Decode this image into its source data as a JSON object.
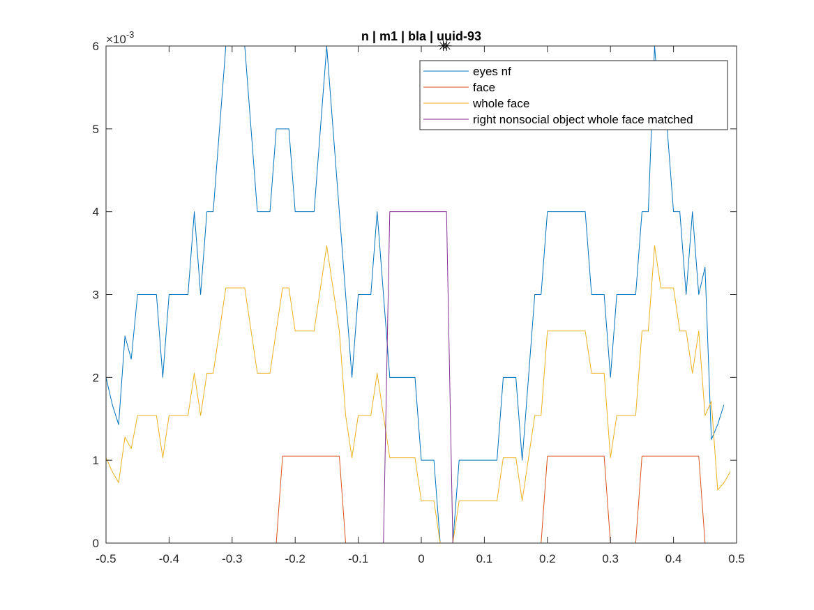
{
  "chart_data": {
    "type": "line",
    "title": "n | m1 | bla | uuid-93",
    "xlabel": "",
    "ylabel": "",
    "xlim": [
      -0.5,
      0.5
    ],
    "ylim": [
      0,
      0.006
    ],
    "y_exponent_label": "×10",
    "y_exponent_power": "-3",
    "x_ticks": [
      {
        "value": -0.5,
        "label": "-0.5"
      },
      {
        "value": -0.4,
        "label": "-0.4"
      },
      {
        "value": -0.3,
        "label": "-0.3"
      },
      {
        "value": -0.2,
        "label": "-0.2"
      },
      {
        "value": -0.1,
        "label": "-0.1"
      },
      {
        "value": 0,
        "label": "0"
      },
      {
        "value": 0.1,
        "label": "0.1"
      },
      {
        "value": 0.2,
        "label": "0.2"
      },
      {
        "value": 0.3,
        "label": "0.3"
      },
      {
        "value": 0.4,
        "label": "0.4"
      },
      {
        "value": 0.5,
        "label": "0.5"
      }
    ],
    "y_ticks": [
      {
        "value": 0,
        "label": "0"
      },
      {
        "value": 0.001,
        "label": "1"
      },
      {
        "value": 0.002,
        "label": "2"
      },
      {
        "value": 0.003,
        "label": "3"
      },
      {
        "value": 0.004,
        "label": "4"
      },
      {
        "value": 0.005,
        "label": "5"
      },
      {
        "value": 0.006,
        "label": "6"
      }
    ],
    "grid": false,
    "legend_position": "top-right",
    "markers": [
      {
        "x": 0.035,
        "y": 0.006,
        "symbol": "✳"
      },
      {
        "x": 0.04,
        "y": 0.006,
        "symbol": "✳"
      }
    ],
    "series": [
      {
        "name": "eyes nf",
        "color": "#0072BD",
        "points": [
          [
            -0.5,
            0.002
          ],
          [
            -0.49,
            0.00167
          ],
          [
            -0.48,
            0.00143
          ],
          [
            -0.47,
            0.0025
          ],
          [
            -0.46,
            0.00222
          ],
          [
            -0.45,
            0.003
          ],
          [
            -0.42,
            0.003
          ],
          [
            -0.41,
            0.002
          ],
          [
            -0.4,
            0.003
          ],
          [
            -0.37,
            0.003
          ],
          [
            -0.36,
            0.004
          ],
          [
            -0.35,
            0.003
          ],
          [
            -0.34,
            0.004
          ],
          [
            -0.33,
            0.004
          ],
          [
            -0.31,
            0.006
          ],
          [
            -0.28,
            0.006
          ],
          [
            -0.26,
            0.004
          ],
          [
            -0.24,
            0.004
          ],
          [
            -0.23,
            0.005
          ],
          [
            -0.21,
            0.005
          ],
          [
            -0.2,
            0.004
          ],
          [
            -0.17,
            0.004
          ],
          [
            -0.15,
            0.006
          ],
          [
            -0.13,
            0.004
          ],
          [
            -0.11,
            0.002
          ],
          [
            -0.1,
            0.003
          ],
          [
            -0.08,
            0.003
          ],
          [
            -0.07,
            0.004
          ],
          [
            -0.05,
            0.002
          ],
          [
            -0.01,
            0.002
          ],
          [
            0.0,
            0.001
          ],
          [
            0.02,
            0.001
          ],
          [
            0.03,
            0.0
          ],
          [
            0.04,
            0.0
          ],
          [
            0.05,
            0.0
          ],
          [
            0.06,
            0.001
          ],
          [
            0.12,
            0.001
          ],
          [
            0.13,
            0.002
          ],
          [
            0.15,
            0.002
          ],
          [
            0.16,
            0.001
          ],
          [
            0.18,
            0.003
          ],
          [
            0.19,
            0.003
          ],
          [
            0.2,
            0.004
          ],
          [
            0.26,
            0.004
          ],
          [
            0.27,
            0.003
          ],
          [
            0.29,
            0.003
          ],
          [
            0.3,
            0.002
          ],
          [
            0.31,
            0.003
          ],
          [
            0.34,
            0.003
          ],
          [
            0.35,
            0.004
          ],
          [
            0.36,
            0.004
          ],
          [
            0.37,
            0.006
          ],
          [
            0.38,
            0.005
          ],
          [
            0.39,
            0.005
          ],
          [
            0.4,
            0.004
          ],
          [
            0.41,
            0.004
          ],
          [
            0.42,
            0.003
          ],
          [
            0.43,
            0.004
          ],
          [
            0.44,
            0.003
          ],
          [
            0.45,
            0.00333
          ],
          [
            0.46,
            0.00125
          ],
          [
            0.47,
            0.00143
          ],
          [
            0.48,
            0.00167
          ]
        ]
      },
      {
        "name": "face",
        "color": "#D95319",
        "points": [
          [
            -0.5,
            0.0
          ],
          [
            -0.23,
            0.0
          ],
          [
            -0.22,
            0.00105
          ],
          [
            -0.13,
            0.00105
          ],
          [
            -0.12,
            0.0
          ],
          [
            0.19,
            0.0
          ],
          [
            0.2,
            0.00105
          ],
          [
            0.29,
            0.00105
          ],
          [
            0.3,
            0.0
          ],
          [
            0.34,
            0.0
          ],
          [
            0.35,
            0.00105
          ],
          [
            0.44,
            0.00105
          ],
          [
            0.45,
            0.0
          ],
          [
            0.49,
            0.0
          ]
        ]
      },
      {
        "name": "whole face",
        "color": "#EDB120",
        "points": [
          [
            -0.5,
            0.00103
          ],
          [
            -0.49,
            0.00086
          ],
          [
            -0.48,
            0.00073
          ],
          [
            -0.47,
            0.00128
          ],
          [
            -0.46,
            0.00114
          ],
          [
            -0.45,
            0.00154
          ],
          [
            -0.42,
            0.00154
          ],
          [
            -0.41,
            0.00103
          ],
          [
            -0.4,
            0.00154
          ],
          [
            -0.37,
            0.00154
          ],
          [
            -0.36,
            0.00205
          ],
          [
            -0.35,
            0.00154
          ],
          [
            -0.34,
            0.00205
          ],
          [
            -0.33,
            0.00205
          ],
          [
            -0.31,
            0.00308
          ],
          [
            -0.28,
            0.00308
          ],
          [
            -0.26,
            0.00205
          ],
          [
            -0.24,
            0.00205
          ],
          [
            -0.22,
            0.00308
          ],
          [
            -0.21,
            0.00308
          ],
          [
            -0.2,
            0.00256
          ],
          [
            -0.17,
            0.00256
          ],
          [
            -0.15,
            0.00359
          ],
          [
            -0.13,
            0.00256
          ],
          [
            -0.12,
            0.00154
          ],
          [
            -0.11,
            0.00103
          ],
          [
            -0.1,
            0.00154
          ],
          [
            -0.08,
            0.00154
          ],
          [
            -0.07,
            0.00205
          ],
          [
            -0.05,
            0.00103
          ],
          [
            -0.01,
            0.00103
          ],
          [
            0.0,
            0.00051
          ],
          [
            0.02,
            0.00051
          ],
          [
            0.03,
            0.0
          ],
          [
            0.05,
            0.0
          ],
          [
            0.06,
            0.00051
          ],
          [
            0.12,
            0.00051
          ],
          [
            0.13,
            0.00103
          ],
          [
            0.15,
            0.00103
          ],
          [
            0.16,
            0.00051
          ],
          [
            0.18,
            0.00154
          ],
          [
            0.19,
            0.00154
          ],
          [
            0.2,
            0.00256
          ],
          [
            0.26,
            0.00256
          ],
          [
            0.27,
            0.00205
          ],
          [
            0.29,
            0.00205
          ],
          [
            0.3,
            0.00103
          ],
          [
            0.31,
            0.00154
          ],
          [
            0.34,
            0.00154
          ],
          [
            0.35,
            0.00256
          ],
          [
            0.36,
            0.00256
          ],
          [
            0.37,
            0.00359
          ],
          [
            0.38,
            0.00308
          ],
          [
            0.4,
            0.00308
          ],
          [
            0.41,
            0.00256
          ],
          [
            0.42,
            0.00256
          ],
          [
            0.43,
            0.00205
          ],
          [
            0.44,
            0.00256
          ],
          [
            0.45,
            0.00154
          ],
          [
            0.46,
            0.00171
          ],
          [
            0.47,
            0.00064
          ],
          [
            0.48,
            0.00073
          ],
          [
            0.49,
            0.00086
          ]
        ]
      },
      {
        "name": "right nonsocial object whole face matched",
        "color": "#7E2F8E",
        "points": [
          [
            -0.5,
            0.0
          ],
          [
            -0.06,
            0.0
          ],
          [
            -0.05,
            0.004
          ],
          [
            0.04,
            0.004
          ],
          [
            0.05,
            0.0
          ],
          [
            0.49,
            0.0
          ]
        ]
      }
    ]
  }
}
